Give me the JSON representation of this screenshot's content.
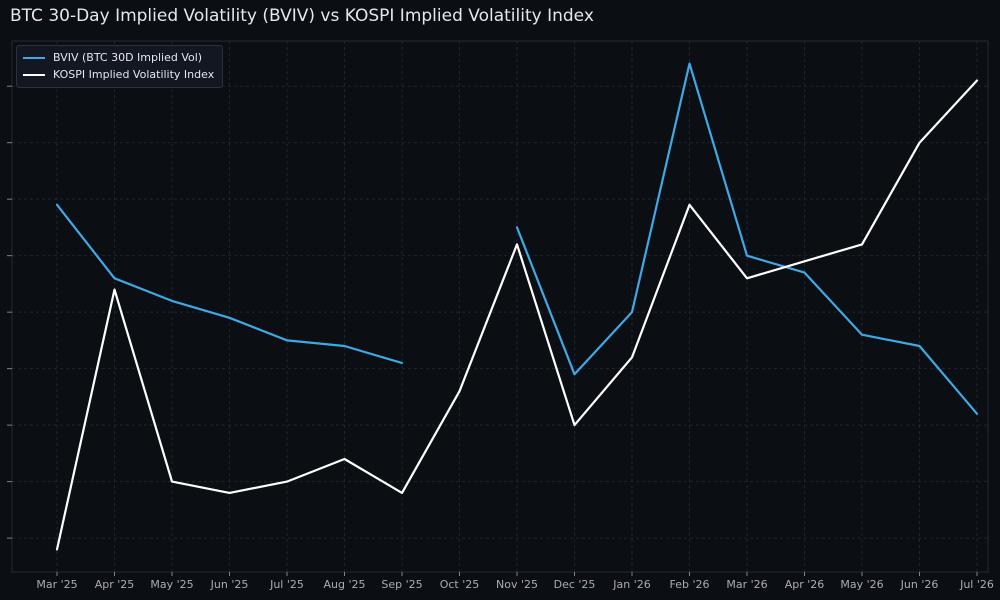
{
  "chart_data": {
    "type": "line",
    "title": "BTC 30-Day Implied Volatility (BVIV) vs KOSPI Implied Volatility Index",
    "categories": [
      "Mar '25",
      "Apr '25",
      "May '25",
      "Jun '25",
      "Jul '25",
      "Aug '25",
      "Sep '25",
      "Oct '25",
      "Nov '25",
      "Dec '25",
      "Jan '26",
      "Feb '26",
      "Mar '26",
      "Apr '26",
      "May '26",
      "Jun '26",
      "Jul '26"
    ],
    "series": [
      {
        "name": "BVIV (BTC 30D Implied Vol)",
        "color": "#3fa9e5",
        "values": [
          64.5,
          58.0,
          56.0,
          54.5,
          52.5,
          52.0,
          50.5,
          null,
          62.5,
          49.5,
          55.0,
          77.0,
          60.0,
          58.5,
          53.0,
          52.0,
          46.0
        ]
      },
      {
        "name": "KOSPI Implied Volatility Index",
        "color": "#ffffff",
        "values": [
          34.0,
          57.0,
          40.0,
          39.0,
          40.0,
          42.0,
          39.0,
          48.0,
          61.0,
          45.0,
          51.0,
          64.5,
          58.0,
          59.5,
          61.0,
          70.0,
          75.5
        ]
      }
    ],
    "ylim": [
      32,
      79
    ],
    "grid": true,
    "legend_position": "top-left"
  }
}
